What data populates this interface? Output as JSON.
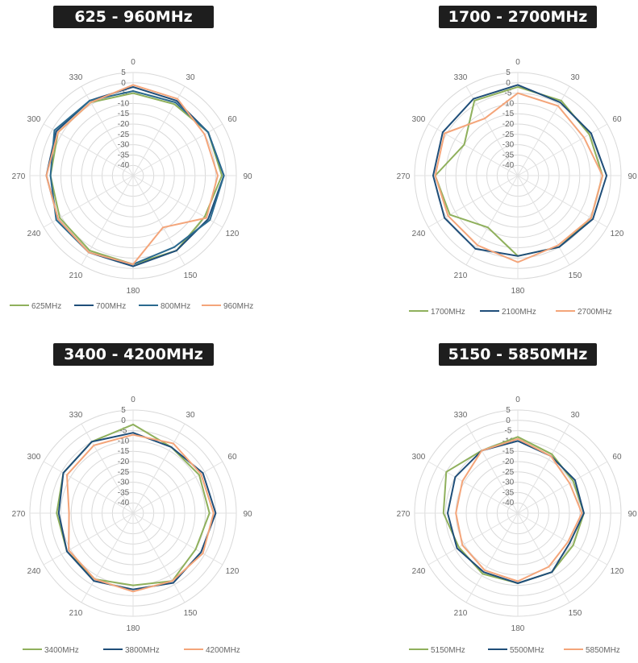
{
  "chart_data": [
    {
      "type": "radar",
      "title": "625 - 960MHz",
      "angle_labels": [
        "0",
        "30",
        "60",
        "90",
        "120",
        "150",
        "180",
        "210",
        "240",
        "270",
        "300",
        "330"
      ],
      "radial_ticks": [
        5,
        0,
        -5,
        -10,
        -15,
        -20,
        -25,
        -30,
        -35,
        -40
      ],
      "rlim": [
        -45,
        5
      ],
      "grid": true,
      "legend_position": "bottom",
      "series": [
        {
          "name": "625MHz",
          "color": "#8fb05c",
          "angles": [
            0,
            30,
            60,
            90,
            120,
            150,
            180,
            210,
            240,
            270,
            300,
            330
          ],
          "values": [
            -5,
            -5,
            -3,
            -2,
            -5,
            -3,
            -2,
            -3,
            -4,
            -5,
            -3,
            -4
          ]
        },
        {
          "name": "700MHz",
          "color": "#1f4e79",
          "angles": [
            0,
            30,
            60,
            90,
            120,
            150,
            180,
            210,
            240,
            270,
            300,
            330
          ],
          "values": [
            -2,
            -3,
            -3,
            -1,
            -3,
            -3,
            -1,
            -2,
            -3,
            -3,
            -2,
            -3
          ]
        },
        {
          "name": "800MHz",
          "color": "#2b6a8f",
          "angles": [
            0,
            30,
            60,
            90,
            120,
            150,
            180,
            210,
            240,
            270,
            300,
            330
          ],
          "values": [
            -4,
            -4,
            -3,
            -1,
            -2,
            -5,
            -2,
            -2,
            -2,
            -5,
            -1,
            -3
          ]
        },
        {
          "name": "960MHz",
          "color": "#f4a57a",
          "angles": [
            0,
            30,
            60,
            90,
            120,
            150,
            180,
            210,
            240,
            270,
            300,
            330
          ],
          "values": [
            -1,
            -2,
            -5,
            -4,
            -4,
            -16,
            -2,
            -2,
            -3,
            -3,
            -3,
            -4
          ]
        }
      ]
    },
    {
      "type": "radar",
      "title": "1700 - 2700MHz",
      "angle_labels": [
        "0",
        "30",
        "60",
        "90",
        "120",
        "150",
        "180",
        "210",
        "240",
        "270",
        "300",
        "330"
      ],
      "radial_ticks": [
        5,
        0,
        -5,
        -10,
        -15,
        -20,
        -25,
        -30,
        -35,
        -40
      ],
      "rlim": [
        -45,
        5
      ],
      "grid": true,
      "legend_position": "bottom",
      "series": [
        {
          "name": "1700MHz",
          "color": "#8fb05c",
          "angles": [
            0,
            30,
            60,
            90,
            120,
            150,
            180,
            210,
            240,
            270,
            300,
            330
          ],
          "values": [
            -2,
            -3,
            -5,
            -4,
            -4,
            -5,
            -6,
            -16,
            -7,
            -5,
            -15,
            -3
          ]
        },
        {
          "name": "2100MHz",
          "color": "#1f4e79",
          "angles": [
            0,
            30,
            60,
            90,
            120,
            150,
            180,
            210,
            240,
            270,
            300,
            330
          ],
          "values": [
            -1,
            -4,
            -4,
            -2,
            -3,
            -5,
            -6,
            -4,
            -4,
            -4,
            -3,
            -2
          ]
        },
        {
          "name": "2700MHz",
          "color": "#f4a57a",
          "angles": [
            0,
            30,
            60,
            90,
            120,
            150,
            180,
            210,
            240,
            270,
            300,
            330
          ],
          "values": [
            -5,
            -6,
            -8,
            -4,
            -4,
            -6,
            -3,
            -6,
            -6,
            -5,
            -4,
            -13
          ]
        }
      ]
    },
    {
      "type": "radar",
      "title": "3400 - 4200MHz",
      "angle_labels": [
        "0",
        "30",
        "60",
        "90",
        "120",
        "150",
        "180",
        "210",
        "240",
        "270",
        "300",
        "330"
      ],
      "radial_ticks": [
        5,
        0,
        -5,
        -10,
        -15,
        -20,
        -25,
        -30,
        -35,
        -40
      ],
      "rlim": [
        -45,
        5
      ],
      "grid": true,
      "legend_position": "bottom",
      "series": [
        {
          "name": "3400MHz",
          "color": "#8fb05c",
          "angles": [
            0,
            30,
            60,
            90,
            120,
            150,
            180,
            210,
            240,
            270,
            300,
            330
          ],
          "values": [
            -2,
            -8,
            -8,
            -8,
            -10,
            -7,
            -10,
            -8,
            -8,
            -8,
            -6,
            -5
          ]
        },
        {
          "name": "3800MHz",
          "color": "#1f4e79",
          "angles": [
            0,
            30,
            60,
            90,
            120,
            150,
            180,
            210,
            240,
            270,
            300,
            330
          ],
          "values": [
            -6,
            -8,
            -6,
            -5,
            -7,
            -6,
            -8,
            -7,
            -8,
            -9,
            -6,
            -5
          ]
        },
        {
          "name": "4200MHz",
          "color": "#f4a57a",
          "angles": [
            0,
            30,
            60,
            90,
            120,
            150,
            180,
            210,
            240,
            270,
            300,
            330
          ],
          "values": [
            -7,
            -6,
            -7,
            -6,
            -6,
            -7,
            -7,
            -8,
            -9,
            -14,
            -8,
            -7
          ]
        }
      ]
    },
    {
      "type": "radar",
      "title": "5150 - 5850MHz",
      "angle_labels": [
        "0",
        "30",
        "60",
        "90",
        "120",
        "150",
        "180",
        "210",
        "240",
        "270",
        "300",
        "330"
      ],
      "radial_ticks": [
        5,
        0,
        -5,
        -10,
        -15,
        -20,
        -25,
        -30,
        -35,
        -40
      ],
      "rlim": [
        -45,
        5
      ],
      "grid": true,
      "legend_position": "bottom",
      "series": [
        {
          "name": "5150MHz",
          "color": "#8fb05c",
          "angles": [
            0,
            30,
            60,
            90,
            120,
            150,
            180,
            210,
            240,
            270,
            300,
            330
          ],
          "values": [
            -8,
            -12,
            -14,
            -13,
            -14,
            -12,
            -11,
            -11,
            -12,
            -9,
            -5,
            -10
          ]
        },
        {
          "name": "5500MHz",
          "color": "#1f4e79",
          "angles": [
            0,
            30,
            60,
            90,
            120,
            150,
            180,
            210,
            240,
            270,
            300,
            330
          ],
          "values": [
            -10,
            -13,
            -13,
            -13,
            -16,
            -12,
            -11,
            -12,
            -11,
            -11,
            -10,
            -10
          ]
        },
        {
          "name": "5850MHz",
          "color": "#f4a57a",
          "angles": [
            0,
            30,
            60,
            90,
            120,
            150,
            180,
            210,
            240,
            270,
            300,
            330
          ],
          "values": [
            -9,
            -13,
            -16,
            -14,
            -17,
            -15,
            -12,
            -13,
            -14,
            -15,
            -14,
            -10
          ]
        }
      ]
    }
  ]
}
